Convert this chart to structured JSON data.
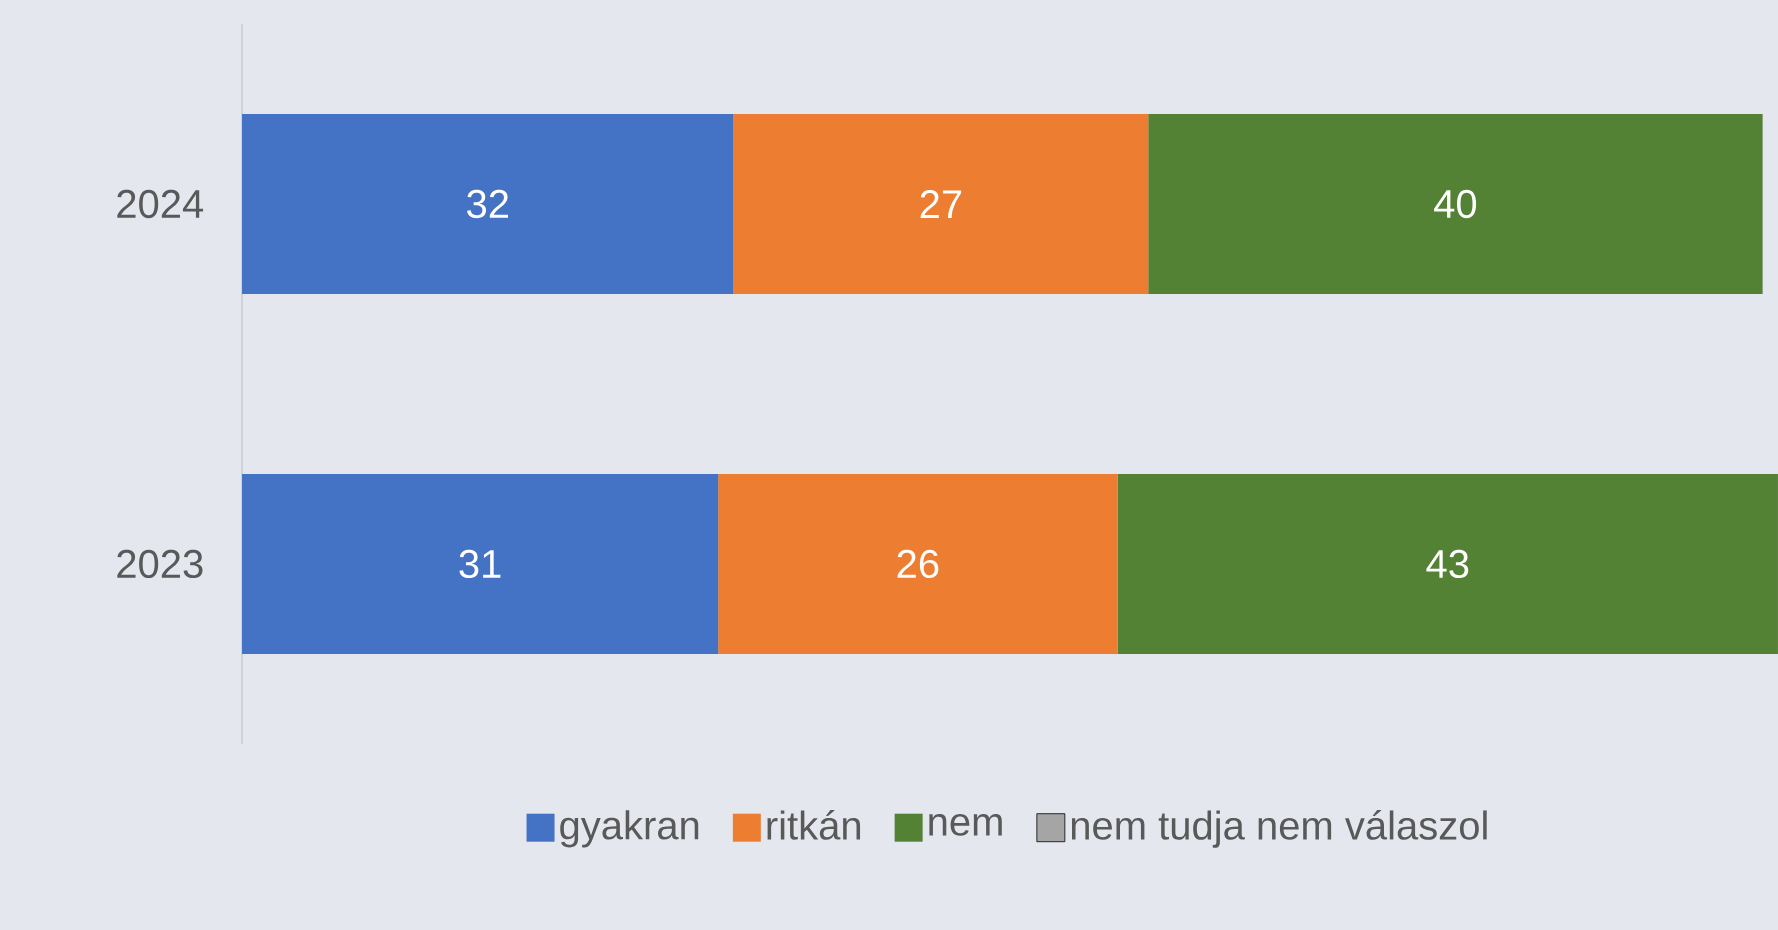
{
  "chart_data": {
    "type": "bar",
    "orientation": "horizontal",
    "stacked": true,
    "categories": [
      "2024",
      "2023"
    ],
    "series": [
      {
        "name": "gyakran",
        "color": "#4472c4",
        "values": [
          32,
          31
        ]
      },
      {
        "name": "ritkán",
        "color": "#ed7d31",
        "values": [
          27,
          26
        ]
      },
      {
        "name": "nem",
        "color": "#548235",
        "values": [
          40,
          43
        ]
      },
      {
        "name": "nem tudja nem válaszol",
        "color": "#a5a5a5",
        "values": [
          null,
          null
        ]
      }
    ],
    "data_labels": true,
    "tick_labels": "y",
    "legend": "bottom"
  }
}
